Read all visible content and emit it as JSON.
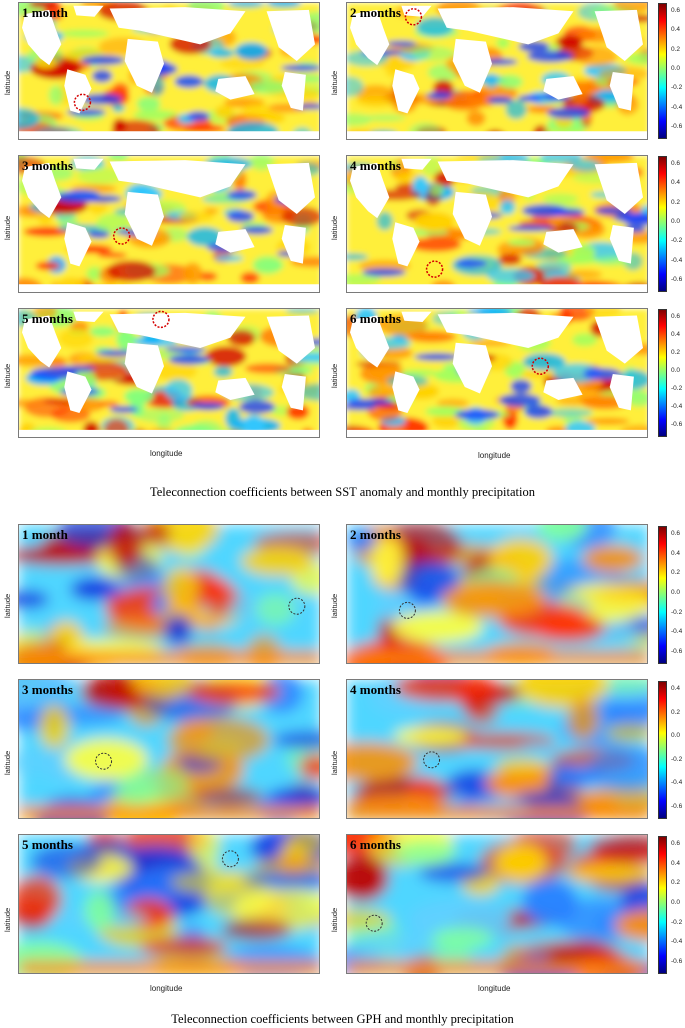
{
  "colors": {
    "jet": [
      "#00007f",
      "#0000ff",
      "#007fff",
      "#00ffff",
      "#7fff7f",
      "#ffff00",
      "#ff7f00",
      "#ff0000",
      "#7f0000"
    ],
    "circle": "#d40000",
    "circle_gph": "#333333"
  },
  "axis": {
    "latitude": "latitude",
    "longitude": "longitude"
  },
  "sst": {
    "caption": "Teleconnection coefficients between SST anomaly and monthly precipitation",
    "panels": [
      {
        "label": "1 month"
      },
      {
        "label": "2 months"
      },
      {
        "label": "3 months"
      },
      {
        "label": "4 months"
      },
      {
        "label": "5 months"
      },
      {
        "label": "6 months"
      }
    ],
    "colorbar_ticks": [
      "0.6",
      "0.4",
      "0.2",
      "0.0",
      "-0.2",
      "-0.4",
      "-0.6"
    ]
  },
  "gph": {
    "caption": "Teleconnection coefficients between GPH and monthly precipitation",
    "panels": [
      {
        "label": "1 month"
      },
      {
        "label": "2 months"
      },
      {
        "label": "3 months"
      },
      {
        "label": "4 months"
      },
      {
        "label": "5 months"
      },
      {
        "label": "6 months"
      }
    ],
    "colorbar_ticks": [
      "0.6",
      "0.4",
      "0.2",
      "0.0",
      "-0.2",
      "-0.4",
      "-0.6"
    ],
    "colorbar_ticks_4m": [
      "0.4",
      "0.2",
      "0.0",
      "-0.2",
      "-0.4",
      "-0.6"
    ]
  },
  "chart_data": [
    {
      "type": "heatmap",
      "title": "1 month",
      "xlabel": "longitude",
      "ylabel": "latitude",
      "colorbar_range": [
        -0.7,
        0.7
      ],
      "group": "SST anomaly"
    },
    {
      "type": "heatmap",
      "title": "2 months",
      "xlabel": "longitude",
      "ylabel": "latitude",
      "colorbar_range": [
        -0.7,
        0.7
      ],
      "group": "SST anomaly"
    },
    {
      "type": "heatmap",
      "title": "3 months",
      "xlabel": "longitude",
      "ylabel": "latitude",
      "colorbar_range": [
        -0.7,
        0.7
      ],
      "group": "SST anomaly"
    },
    {
      "type": "heatmap",
      "title": "4 months",
      "xlabel": "longitude",
      "ylabel": "latitude",
      "colorbar_range": [
        -0.7,
        0.7
      ],
      "group": "SST anomaly"
    },
    {
      "type": "heatmap",
      "title": "5 months",
      "xlabel": "longitude",
      "ylabel": "latitude",
      "colorbar_range": [
        -0.7,
        0.7
      ],
      "group": "SST anomaly"
    },
    {
      "type": "heatmap",
      "title": "6 months",
      "xlabel": "longitude",
      "ylabel": "latitude",
      "colorbar_range": [
        -0.7,
        0.7
      ],
      "group": "SST anomaly"
    },
    {
      "type": "heatmap",
      "title": "1 month",
      "xlabel": "longitude",
      "ylabel": "latitude",
      "colorbar_range": [
        -0.7,
        0.7
      ],
      "group": "GPH"
    },
    {
      "type": "heatmap",
      "title": "2 months",
      "xlabel": "longitude",
      "ylabel": "latitude",
      "colorbar_range": [
        -0.7,
        0.7
      ],
      "group": "GPH"
    },
    {
      "type": "heatmap",
      "title": "3 months",
      "xlabel": "longitude",
      "ylabel": "latitude",
      "colorbar_range": [
        -0.7,
        0.7
      ],
      "group": "GPH"
    },
    {
      "type": "heatmap",
      "title": "4 months",
      "xlabel": "longitude",
      "ylabel": "latitude",
      "colorbar_range": [
        -0.7,
        0.55
      ],
      "group": "GPH"
    },
    {
      "type": "heatmap",
      "title": "5 months",
      "xlabel": "longitude",
      "ylabel": "latitude",
      "colorbar_range": [
        -0.7,
        0.7
      ],
      "group": "GPH"
    },
    {
      "type": "heatmap",
      "title": "6 months",
      "xlabel": "longitude",
      "ylabel": "latitude",
      "colorbar_range": [
        -0.7,
        0.7
      ],
      "group": "GPH"
    }
  ]
}
